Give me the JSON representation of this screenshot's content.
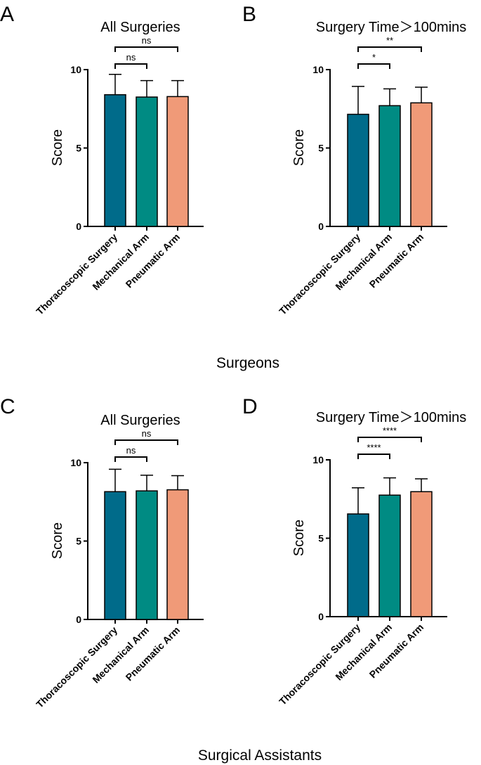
{
  "row_labels": [
    "Surgeons",
    "Surgical Assistants"
  ],
  "colors": {
    "bars": [
      "#006b8a",
      "#008b83",
      "#f09a78"
    ],
    "ink": "#000000"
  },
  "chart_data": [
    {
      "panel": "A",
      "type": "bar",
      "title": "All Surgeries",
      "xlabel": "",
      "ylabel": "Score",
      "ylim": [
        0,
        10
      ],
      "yticks": [
        0,
        5,
        10
      ],
      "categories": [
        "Thoracoscopic Surgery",
        "Mechanical Arm",
        "Pneumatic Arm"
      ],
      "values": [
        8.4,
        8.25,
        8.28
      ],
      "errors": [
        1.3,
        1.05,
        1.02
      ],
      "significance": [
        {
          "from": 0,
          "to": 1,
          "label": "ns"
        },
        {
          "from": 0,
          "to": 2,
          "label": "ns"
        }
      ]
    },
    {
      "panel": "B",
      "type": "bar",
      "title": "Surgery Time＞100mins",
      "xlabel": "",
      "ylabel": "Score",
      "ylim": [
        0,
        10
      ],
      "yticks": [
        0,
        5,
        10
      ],
      "categories": [
        "Thoracoscopic Surgery",
        "Mechanical Arm",
        "Pneumatic Arm"
      ],
      "values": [
        7.15,
        7.7,
        7.88
      ],
      "errors": [
        1.78,
        1.07,
        1.0
      ],
      "significance": [
        {
          "from": 0,
          "to": 1,
          "label": "*"
        },
        {
          "from": 0,
          "to": 2,
          "label": "**"
        }
      ]
    },
    {
      "panel": "C",
      "type": "bar",
      "title": "All Surgeries",
      "xlabel": "",
      "ylabel": "Score",
      "ylim": [
        0,
        10
      ],
      "yticks": [
        0,
        5,
        10
      ],
      "categories": [
        "Thoracoscopic Surgery",
        "Mechanical Arm",
        "Pneumatic Arm"
      ],
      "values": [
        8.15,
        8.2,
        8.27
      ],
      "errors": [
        1.43,
        1.0,
        0.9
      ],
      "significance": [
        {
          "from": 0,
          "to": 1,
          "label": "ns"
        },
        {
          "from": 0,
          "to": 2,
          "label": "ns"
        }
      ]
    },
    {
      "panel": "D",
      "type": "bar",
      "title": "Surgery Time＞100mins",
      "xlabel": "",
      "ylabel": "Score",
      "ylim": [
        0,
        10
      ],
      "yticks": [
        0,
        5,
        10
      ],
      "categories": [
        "Thoracoscopic Surgery",
        "Mechanical Arm",
        "Pneumatic Arm"
      ],
      "values": [
        6.55,
        7.75,
        7.97
      ],
      "errors": [
        1.67,
        1.1,
        0.82
      ],
      "significance": [
        {
          "from": 0,
          "to": 1,
          "label": "****"
        },
        {
          "from": 0,
          "to": 2,
          "label": "****"
        }
      ]
    }
  ]
}
